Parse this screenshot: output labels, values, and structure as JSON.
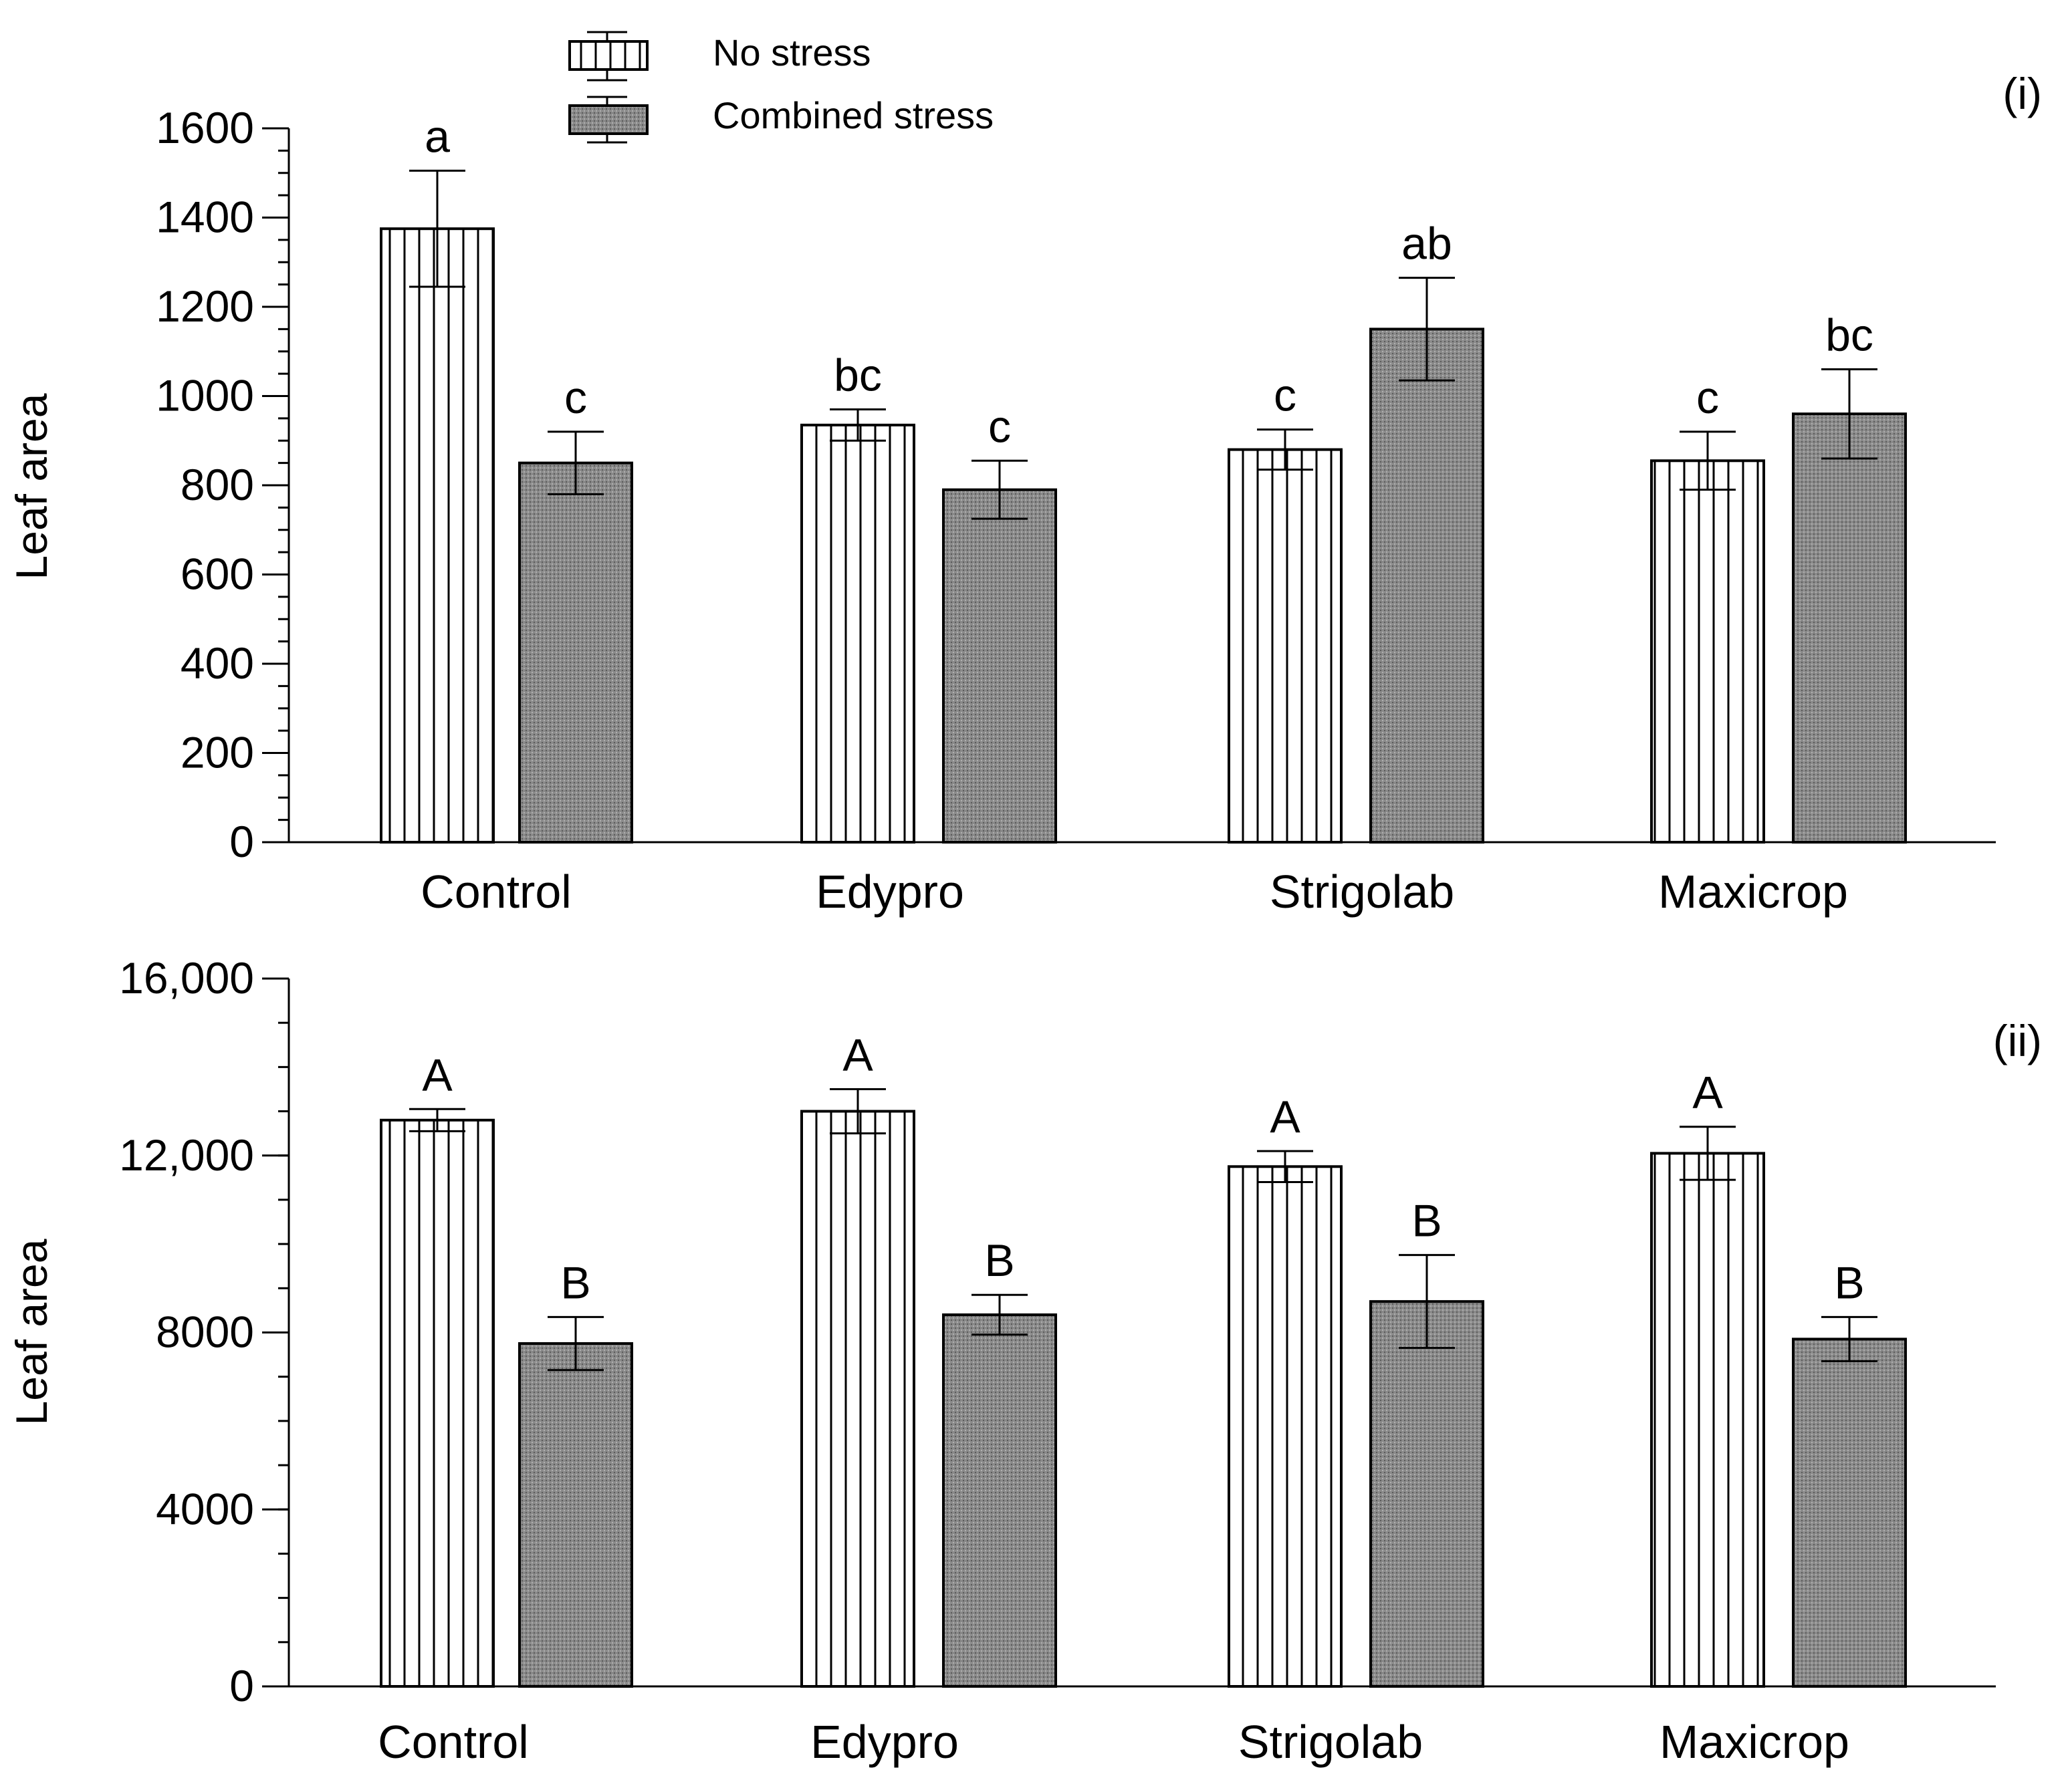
{
  "legend": {
    "position": "top-center",
    "items": [
      {
        "label": "No stress",
        "pattern": "vertical-stripes"
      },
      {
        "label": "Combined stress",
        "pattern": "gray-dotted"
      }
    ]
  },
  "colors": {
    "combined_fill": "#8a8a8a",
    "stripe": "#000000",
    "background": "#ffffff"
  },
  "chart_data": [
    {
      "type": "bar",
      "panel_label": "(i)",
      "ylabel": "Leaf area",
      "xlabel": "",
      "ylim": [
        0,
        1600
      ],
      "yticks": [
        0,
        200,
        400,
        600,
        800,
        1000,
        1200,
        1400,
        1600
      ],
      "ytick_labels": [
        "0",
        "200",
        "400",
        "600",
        "800",
        "1000",
        "1200",
        "1400",
        "1600"
      ],
      "minor_tick_step": 50,
      "categories": [
        "Control",
        "Edypro",
        "Strigolab",
        "Maxicrop"
      ],
      "series": [
        {
          "name": "No stress",
          "values": [
            1375,
            935,
            880,
            855
          ],
          "errors": [
            130,
            35,
            45,
            65
          ],
          "labels": [
            "a",
            "bc",
            "c",
            "c"
          ]
        },
        {
          "name": "Combined stress",
          "values": [
            850,
            790,
            1150,
            960
          ],
          "errors": [
            70,
            65,
            115,
            100
          ],
          "labels": [
            "c",
            "c",
            "ab",
            "bc"
          ]
        }
      ]
    },
    {
      "type": "bar",
      "panel_label": "(ii)",
      "ylabel": "Leaf area",
      "xlabel": "",
      "ylim": [
        0,
        16000
      ],
      "yticks": [
        0,
        4000,
        8000,
        12000,
        16000
      ],
      "ytick_labels": [
        "0",
        "4000",
        "8000",
        "12,000",
        "16,000"
      ],
      "minor_tick_step": 1000,
      "categories": [
        "Control",
        "Edypro",
        "Strigolab",
        "Maxicrop"
      ],
      "series": [
        {
          "name": "No stress",
          "values": [
            12800,
            13000,
            11750,
            12050
          ],
          "errors": [
            250,
            500,
            350,
            600
          ],
          "labels": [
            "A",
            "A",
            "A",
            "A"
          ]
        },
        {
          "name": "Combined stress",
          "values": [
            7750,
            8400,
            8700,
            7850
          ],
          "errors": [
            600,
            450,
            1050,
            500
          ],
          "labels": [
            "B",
            "B",
            "B",
            "B"
          ]
        }
      ]
    }
  ]
}
